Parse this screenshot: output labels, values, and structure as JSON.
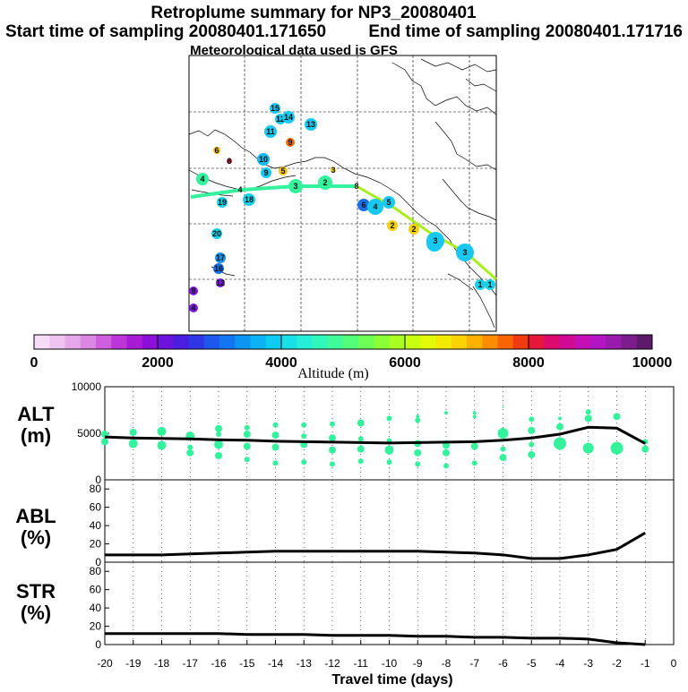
{
  "header": {
    "title": "Retroplume summary for NP3_20080401",
    "start_time": "Start time of sampling 20080401.171650",
    "end_time": "End time of sampling 20080401.171716",
    "met_data": "Meteorological data used is GFS"
  },
  "colorbar": {
    "label": "Altitude (m)",
    "ticks": [
      "0",
      "2000",
      "4000",
      "6000",
      "8000",
      "10000"
    ],
    "colors": [
      "#f7dcf7",
      "#efc4f0",
      "#e6a8ea",
      "#dc86e4",
      "#cf5fde",
      "#bd36d8",
      "#a71ad6",
      "#8b0fd9",
      "#6c14de",
      "#4b1fe2",
      "#2e36e6",
      "#1c58ec",
      "#1176f0",
      "#0d95f2",
      "#0cb3f4",
      "#0ecbf2",
      "#19dfe8",
      "#25efd6",
      "#31f7bb",
      "#3ffb9a",
      "#53fd78",
      "#6dff55",
      "#8aff36",
      "#a9ff1f",
      "#c8ff10",
      "#e2fa08",
      "#f3ea04",
      "#fbd203",
      "#fdb202",
      "#fd8e02",
      "#f96504",
      "#f23a10",
      "#e8163a",
      "#dd0a6c",
      "#d10a96",
      "#c40fb4",
      "#b314c4",
      "#9a1aab",
      "#7d1c8d",
      "#5e1a6a"
    ]
  },
  "map": {
    "labels": [
      {
        "t": "15",
        "c": "#18c8f0",
        "r": 6
      },
      {
        "t": "12",
        "c": "#18c8f0",
        "r": 6
      },
      {
        "t": "14",
        "c": "#18c8f0",
        "r": 7
      },
      {
        "t": "13",
        "c": "#18c8f0",
        "r": 7
      },
      {
        "t": "11",
        "c": "#18c8f0",
        "r": 7
      },
      {
        "t": "9",
        "c": "#f26a10",
        "r": 5
      },
      {
        "t": "6",
        "c": "#f3c013",
        "r": 4
      },
      {
        "t": "8",
        "c": "#e8163a",
        "r": 3
      },
      {
        "t": "10",
        "c": "#18b8f0",
        "r": 7
      },
      {
        "t": "9",
        "c": "#18c8f0",
        "r": 6
      },
      {
        "t": "5",
        "c": "#f3c013",
        "r": 5
      },
      {
        "t": "3",
        "c": "#f3e010",
        "r": 3
      },
      {
        "t": "4",
        "c": "#33f29b",
        "r": 7
      },
      {
        "t": "4",
        "c": "#333333",
        "r": 0
      },
      {
        "t": "19",
        "c": "#18d0e8",
        "r": 6
      },
      {
        "t": "18",
        "c": "#18d0e8",
        "r": 7
      },
      {
        "t": "3",
        "c": "#33f29b",
        "r": 8
      },
      {
        "t": "2",
        "c": "#33f29b",
        "r": 8
      },
      {
        "t": "8",
        "c": "#333333",
        "r": 0
      },
      {
        "t": "6",
        "c": "#1870e8",
        "r": 7
      },
      {
        "t": "5",
        "c": "#18c8f0",
        "r": 7
      },
      {
        "t": "4",
        "c": "#18c8f0",
        "r": 9
      },
      {
        "t": "2",
        "c": "#f3d010",
        "r": 6
      },
      {
        "t": "2",
        "c": "#f3d010",
        "r": 6
      },
      {
        "t": "2",
        "c": "#18c8f0",
        "r": 9
      },
      {
        "t": "3",
        "c": "#18c8f0",
        "r": 10
      },
      {
        "t": "3",
        "c": "#18c8f0",
        "r": 10
      },
      {
        "t": "1",
        "c": "#18d0e8",
        "r": 6
      },
      {
        "t": "1",
        "c": "#18d0e8",
        "r": 6
      },
      {
        "t": "20",
        "c": "#18d0e8",
        "r": 6
      },
      {
        "t": "17",
        "c": "#1890e8",
        "r": 6
      },
      {
        "t": "16",
        "c": "#1870e8",
        "r": 6
      },
      {
        "t": "12",
        "c": "#7a18e0",
        "r": 5
      },
      {
        "t": "9",
        "c": "#7a18e0",
        "r": 5
      },
      {
        "t": "4",
        "c": "#7a18e0",
        "r": 5
      }
    ]
  },
  "panels": {
    "alt": {
      "name": "ALT",
      "unit": "(m)",
      "ticks": [
        "0",
        "5000",
        "10000"
      ]
    },
    "abl": {
      "name": "ABL",
      "unit": "(%)",
      "ticks": [
        "0",
        "20",
        "40",
        "60",
        "80"
      ]
    },
    "str": {
      "name": "STR",
      "unit": "(%)",
      "ticks": [
        "0",
        "20",
        "40",
        "60",
        "80"
      ]
    }
  },
  "xaxis": {
    "label": "Travel time (days)"
  },
  "chart_data": {
    "type": "line",
    "title": "Retroplume summary for NP3_20080401",
    "x": [
      -20,
      -19,
      -18,
      -17,
      -16,
      -15,
      -14,
      -13,
      -12,
      -11,
      -10,
      -9,
      -8,
      -7,
      -6,
      -5,
      -4,
      -3,
      -2,
      -1
    ],
    "xlabel": "Travel time (days)",
    "xlim": [
      -20,
      0
    ],
    "xticks": [
      "-20",
      "-19",
      "-18",
      "-17",
      "-16",
      "-15",
      "-14",
      "-13",
      "-12",
      "-11",
      "-10",
      "-9",
      "-8",
      "-7",
      "-6",
      "-5",
      "-4",
      "-3",
      "-2",
      "-1",
      "0"
    ],
    "series": [
      {
        "name": "ALT (m)",
        "ylim": [
          0,
          10000
        ],
        "values": [
          4600,
          4500,
          4450,
          4400,
          4300,
          4250,
          4150,
          4100,
          4050,
          4000,
          3950,
          4000,
          4050,
          4100,
          4250,
          4500,
          4900,
          5650,
          5550,
          3900
        ]
      },
      {
        "name": "ABL (%)",
        "ylim": [
          0,
          90
        ],
        "values": [
          8,
          8,
          8,
          9,
          10,
          11,
          12,
          12,
          12,
          12,
          12,
          12,
          11,
          10,
          8,
          4,
          4,
          8,
          14,
          32
        ]
      },
      {
        "name": "STR (%)",
        "ylim": [
          0,
          90
        ],
        "values": [
          12,
          12,
          12,
          12,
          12,
          11,
          11,
          11,
          10,
          10,
          10,
          9,
          9,
          8,
          8,
          7,
          7,
          6,
          2,
          0
        ]
      }
    ],
    "alt_scatter": [
      [
        -20,
        4100,
        4
      ],
      [
        -20,
        4900,
        4
      ],
      [
        -19,
        3900,
        5
      ],
      [
        -19,
        5100,
        4
      ],
      [
        -18,
        3700,
        5
      ],
      [
        -18,
        5200,
        5
      ],
      [
        -17,
        2900,
        4
      ],
      [
        -17,
        4700,
        5
      ],
      [
        -17,
        3500,
        3
      ],
      [
        -16,
        2600,
        4
      ],
      [
        -16,
        3800,
        5
      ],
      [
        -16,
        5500,
        4
      ],
      [
        -16,
        4900,
        3
      ],
      [
        -15,
        2200,
        3
      ],
      [
        -15,
        3600,
        4
      ],
      [
        -15,
        4900,
        4
      ],
      [
        -15,
        5600,
        3
      ],
      [
        -14,
        1800,
        3
      ],
      [
        -14,
        3500,
        4
      ],
      [
        -14,
        4800,
        4
      ],
      [
        -14,
        5900,
        3
      ],
      [
        -13,
        1900,
        3
      ],
      [
        -13,
        3800,
        4
      ],
      [
        -13,
        4700,
        3
      ],
      [
        -13,
        5900,
        3
      ],
      [
        -12,
        1700,
        3
      ],
      [
        -12,
        3200,
        4
      ],
      [
        -12,
        4500,
        4
      ],
      [
        -12,
        6000,
        3
      ],
      [
        -11,
        2000,
        3
      ],
      [
        -11,
        3300,
        4
      ],
      [
        -11,
        4400,
        3
      ],
      [
        -11,
        6100,
        4
      ],
      [
        -10,
        1900,
        3
      ],
      [
        -10,
        3200,
        5
      ],
      [
        -10,
        4200,
        3
      ],
      [
        -10,
        6600,
        3
      ],
      [
        -9,
        1700,
        3
      ],
      [
        -9,
        2900,
        4
      ],
      [
        -9,
        3900,
        4
      ],
      [
        -9,
        6400,
        3
      ],
      [
        -9,
        6800,
        2
      ],
      [
        -8,
        1500,
        3
      ],
      [
        -8,
        2900,
        4
      ],
      [
        -8,
        3700,
        4
      ],
      [
        -8,
        7200,
        2
      ],
      [
        -7,
        1800,
        3
      ],
      [
        -7,
        3600,
        4
      ],
      [
        -7,
        6800,
        2
      ],
      [
        -7,
        7200,
        2
      ],
      [
        -6,
        2400,
        4
      ],
      [
        -6,
        3300,
        3
      ],
      [
        -6,
        5000,
        6
      ],
      [
        -6,
        7800,
        1
      ],
      [
        -5,
        2700,
        4
      ],
      [
        -5,
        3800,
        3
      ],
      [
        -5,
        5300,
        4
      ],
      [
        -5,
        6500,
        3
      ],
      [
        -4,
        3900,
        7
      ],
      [
        -4,
        5700,
        4
      ],
      [
        -4,
        6600,
        2
      ],
      [
        -3,
        3400,
        6
      ],
      [
        -3,
        6600,
        4
      ],
      [
        -3,
        7300,
        3
      ],
      [
        -2,
        3400,
        7
      ],
      [
        -2,
        6800,
        4
      ],
      [
        -1,
        3300,
        4
      ],
      [
        -1,
        4100,
        3
      ]
    ]
  }
}
